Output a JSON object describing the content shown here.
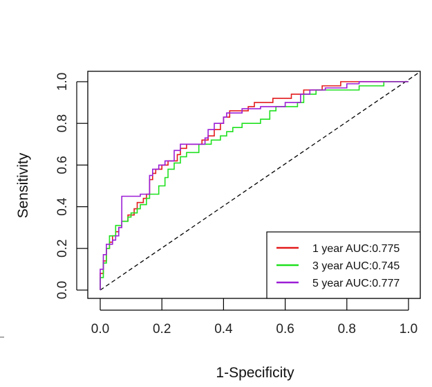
{
  "chart_data": {
    "type": "line",
    "title": "",
    "xlabel": "1-Specificity",
    "ylabel": "Sensitivity",
    "xlim": [
      0,
      1
    ],
    "ylim": [
      0,
      1
    ],
    "x_ticks": [
      "0.0",
      "0.2",
      "0.4",
      "0.6",
      "0.8",
      "1.0"
    ],
    "y_ticks": [
      "0.0",
      "0.2",
      "0.4",
      "0.6",
      "0.8",
      "1.0"
    ],
    "legend_position": "bottom-right",
    "diagonal_color": "#000000",
    "series": [
      {
        "name": "1 year AUC:0.775",
        "color": "#e31a1c",
        "points": [
          [
            0,
            0
          ],
          [
            0,
            0.08
          ],
          [
            0.01,
            0.08
          ],
          [
            0.01,
            0.14
          ],
          [
            0.02,
            0.14
          ],
          [
            0.02,
            0.2
          ],
          [
            0.03,
            0.2
          ],
          [
            0.03,
            0.23
          ],
          [
            0.04,
            0.23
          ],
          [
            0.04,
            0.26
          ],
          [
            0.05,
            0.26
          ],
          [
            0.05,
            0.28
          ],
          [
            0.06,
            0.28
          ],
          [
            0.06,
            0.3
          ],
          [
            0.07,
            0.3
          ],
          [
            0.07,
            0.33
          ],
          [
            0.09,
            0.33
          ],
          [
            0.09,
            0.36
          ],
          [
            0.11,
            0.36
          ],
          [
            0.11,
            0.39
          ],
          [
            0.12,
            0.39
          ],
          [
            0.12,
            0.42
          ],
          [
            0.14,
            0.42
          ],
          [
            0.14,
            0.44
          ],
          [
            0.15,
            0.44
          ],
          [
            0.15,
            0.46
          ],
          [
            0.16,
            0.46
          ],
          [
            0.16,
            0.53
          ],
          [
            0.17,
            0.53
          ],
          [
            0.17,
            0.56
          ],
          [
            0.18,
            0.56
          ],
          [
            0.18,
            0.58
          ],
          [
            0.2,
            0.58
          ],
          [
            0.2,
            0.6
          ],
          [
            0.22,
            0.6
          ],
          [
            0.22,
            0.62
          ],
          [
            0.25,
            0.62
          ],
          [
            0.25,
            0.65
          ],
          [
            0.26,
            0.65
          ],
          [
            0.26,
            0.68
          ],
          [
            0.28,
            0.68
          ],
          [
            0.28,
            0.7
          ],
          [
            0.33,
            0.7
          ],
          [
            0.33,
            0.72
          ],
          [
            0.35,
            0.72
          ],
          [
            0.35,
            0.74
          ],
          [
            0.37,
            0.74
          ],
          [
            0.37,
            0.77
          ],
          [
            0.39,
            0.77
          ],
          [
            0.39,
            0.8
          ],
          [
            0.4,
            0.8
          ],
          [
            0.4,
            0.83
          ],
          [
            0.42,
            0.83
          ],
          [
            0.42,
            0.86
          ],
          [
            0.48,
            0.86
          ],
          [
            0.48,
            0.88
          ],
          [
            0.5,
            0.88
          ],
          [
            0.5,
            0.9
          ],
          [
            0.56,
            0.9
          ],
          [
            0.56,
            0.92
          ],
          [
            0.62,
            0.92
          ],
          [
            0.62,
            0.94
          ],
          [
            0.66,
            0.94
          ],
          [
            0.66,
            0.96
          ],
          [
            0.72,
            0.96
          ],
          [
            0.72,
            0.98
          ],
          [
            0.78,
            0.98
          ],
          [
            0.78,
            1
          ],
          [
            1,
            1
          ]
        ]
      },
      {
        "name": "3 year AUC:0.745",
        "color": "#1fe01f",
        "points": [
          [
            0,
            0
          ],
          [
            0,
            0.06
          ],
          [
            0.01,
            0.06
          ],
          [
            0.01,
            0.13
          ],
          [
            0.02,
            0.13
          ],
          [
            0.02,
            0.2
          ],
          [
            0.03,
            0.2
          ],
          [
            0.03,
            0.26
          ],
          [
            0.05,
            0.26
          ],
          [
            0.05,
            0.31
          ],
          [
            0.07,
            0.31
          ],
          [
            0.07,
            0.33
          ],
          [
            0.09,
            0.33
          ],
          [
            0.09,
            0.35
          ],
          [
            0.1,
            0.35
          ],
          [
            0.1,
            0.37
          ],
          [
            0.12,
            0.37
          ],
          [
            0.12,
            0.39
          ],
          [
            0.13,
            0.39
          ],
          [
            0.13,
            0.41
          ],
          [
            0.15,
            0.41
          ],
          [
            0.15,
            0.44
          ],
          [
            0.16,
            0.44
          ],
          [
            0.16,
            0.46
          ],
          [
            0.19,
            0.46
          ],
          [
            0.19,
            0.5
          ],
          [
            0.21,
            0.5
          ],
          [
            0.21,
            0.54
          ],
          [
            0.22,
            0.54
          ],
          [
            0.22,
            0.58
          ],
          [
            0.24,
            0.58
          ],
          [
            0.24,
            0.61
          ],
          [
            0.26,
            0.61
          ],
          [
            0.26,
            0.64
          ],
          [
            0.28,
            0.64
          ],
          [
            0.28,
            0.66
          ],
          [
            0.32,
            0.66
          ],
          [
            0.32,
            0.7
          ],
          [
            0.36,
            0.7
          ],
          [
            0.36,
            0.72
          ],
          [
            0.39,
            0.72
          ],
          [
            0.39,
            0.74
          ],
          [
            0.41,
            0.74
          ],
          [
            0.41,
            0.76
          ],
          [
            0.43,
            0.76
          ],
          [
            0.43,
            0.78
          ],
          [
            0.46,
            0.78
          ],
          [
            0.46,
            0.8
          ],
          [
            0.52,
            0.8
          ],
          [
            0.52,
            0.82
          ],
          [
            0.55,
            0.82
          ],
          [
            0.55,
            0.86
          ],
          [
            0.57,
            0.86
          ],
          [
            0.57,
            0.88
          ],
          [
            0.64,
            0.88
          ],
          [
            0.64,
            0.9
          ],
          [
            0.66,
            0.9
          ],
          [
            0.66,
            0.94
          ],
          [
            0.7,
            0.94
          ],
          [
            0.7,
            0.96
          ],
          [
            0.84,
            0.96
          ],
          [
            0.84,
            0.98
          ],
          [
            0.92,
            0.98
          ],
          [
            0.92,
            1
          ],
          [
            1,
            1
          ]
        ]
      },
      {
        "name": "5 year AUC:0.777",
        "color": "#9b1dd6",
        "points": [
          [
            0,
            0
          ],
          [
            0,
            0.1
          ],
          [
            0.01,
            0.1
          ],
          [
            0.01,
            0.17
          ],
          [
            0.02,
            0.17
          ],
          [
            0.02,
            0.22
          ],
          [
            0.04,
            0.22
          ],
          [
            0.04,
            0.24
          ],
          [
            0.05,
            0.24
          ],
          [
            0.05,
            0.26
          ],
          [
            0.06,
            0.26
          ],
          [
            0.06,
            0.3
          ],
          [
            0.07,
            0.3
          ],
          [
            0.07,
            0.45
          ],
          [
            0.13,
            0.45
          ],
          [
            0.13,
            0.46
          ],
          [
            0.16,
            0.46
          ],
          [
            0.16,
            0.55
          ],
          [
            0.17,
            0.55
          ],
          [
            0.17,
            0.58
          ],
          [
            0.19,
            0.58
          ],
          [
            0.19,
            0.6
          ],
          [
            0.21,
            0.6
          ],
          [
            0.21,
            0.62
          ],
          [
            0.24,
            0.62
          ],
          [
            0.24,
            0.67
          ],
          [
            0.26,
            0.67
          ],
          [
            0.26,
            0.7
          ],
          [
            0.34,
            0.7
          ],
          [
            0.34,
            0.73
          ],
          [
            0.35,
            0.73
          ],
          [
            0.35,
            0.77
          ],
          [
            0.37,
            0.77
          ],
          [
            0.37,
            0.8
          ],
          [
            0.4,
            0.8
          ],
          [
            0.4,
            0.83
          ],
          [
            0.41,
            0.83
          ],
          [
            0.41,
            0.85
          ],
          [
            0.46,
            0.85
          ],
          [
            0.46,
            0.87
          ],
          [
            0.52,
            0.87
          ],
          [
            0.52,
            0.88
          ],
          [
            0.6,
            0.88
          ],
          [
            0.6,
            0.9
          ],
          [
            0.65,
            0.9
          ],
          [
            0.65,
            0.94
          ],
          [
            0.68,
            0.94
          ],
          [
            0.68,
            0.96
          ],
          [
            0.73,
            0.96
          ],
          [
            0.73,
            0.97
          ],
          [
            0.8,
            0.97
          ],
          [
            0.8,
            0.99
          ],
          [
            0.84,
            0.99
          ],
          [
            0.84,
            1
          ],
          [
            1,
            1
          ]
        ]
      }
    ]
  }
}
